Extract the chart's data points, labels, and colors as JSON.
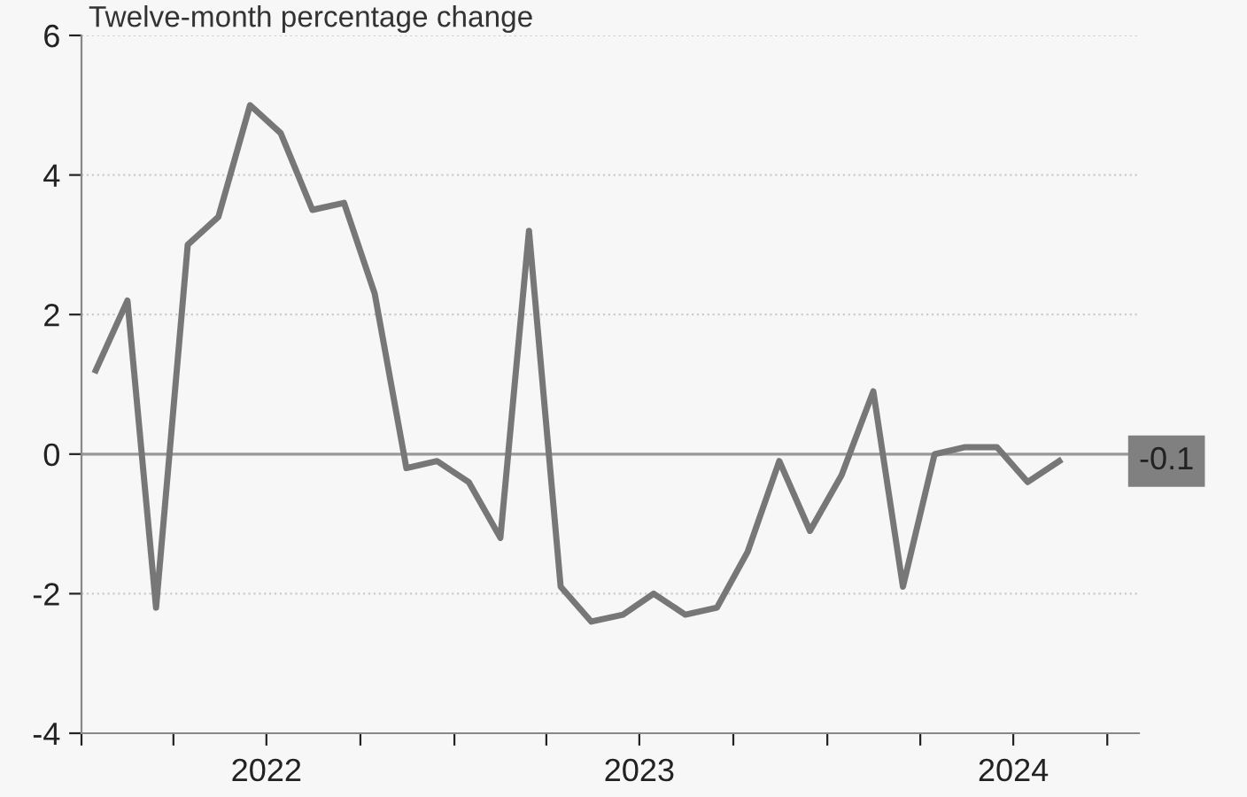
{
  "chart_data": {
    "type": "line",
    "title": "Twelve-month percentage change",
    "x": [
      "2022-01-15",
      "2022-02-15",
      "2022-03-15",
      "2022-04-15",
      "2022-05-15",
      "2022-06-15",
      "2022-07-15",
      "2022-08-15",
      "2022-09-15",
      "2022-10-15",
      "2022-11-15",
      "2022-12-15",
      "2023-01-15",
      "2023-02-15",
      "2023-03-15",
      "2023-04-15",
      "2023-05-15",
      "2023-06-15",
      "2023-07-15",
      "2023-08-15",
      "2023-09-15",
      "2023-10-15",
      "2023-11-15",
      "2023-12-15",
      "2024-01-15",
      "2024-02-15",
      "2024-03-15",
      "2024-04-15",
      "2024-05-15",
      "2024-06-15",
      "2024-07-15",
      "2024-08-15"
    ],
    "series": [
      {
        "color": "#777777",
        "values": [
          1.2,
          2.2,
          -2.2,
          3.0,
          3.4,
          5.0,
          4.6,
          3.5,
          3.6,
          2.3,
          -0.2,
          -0.1,
          -0.4,
          -1.2,
          3.2,
          -1.9,
          -2.4,
          -2.3,
          -2.0,
          -2.3,
          -2.2,
          -1.4,
          -0.1,
          -1.1,
          -0.3,
          0.9,
          -1.9,
          0.0,
          0.1,
          0.1,
          -0.4,
          -0.1
        ]
      }
    ],
    "xlim": [
      "2022-01-01",
      "2024-11-01"
    ],
    "xticks": [
      {
        "value": "2022-01-01",
        "label": null
      },
      {
        "value": "2022-04-01",
        "label": null
      },
      {
        "value": "2022-07-01",
        "label": "2022"
      },
      {
        "value": "2022-10-01",
        "label": null
      },
      {
        "value": "2023-01-01",
        "label": null
      },
      {
        "value": "2023-04-01",
        "label": null
      },
      {
        "value": "2023-07-01",
        "label": "2023"
      },
      {
        "value": "2023-10-01",
        "label": null
      },
      {
        "value": "2024-01-01",
        "label": null
      },
      {
        "value": "2024-04-01",
        "label": null
      },
      {
        "value": "2024-07-01",
        "label": "2024"
      },
      {
        "value": "2024-10-01",
        "label": null
      }
    ],
    "ylim": [
      -4,
      6
    ],
    "yticks": [
      -4,
      -2,
      0,
      2,
      4,
      6
    ],
    "grid": "y",
    "line_style": "solid",
    "marker": "none",
    "legend": false,
    "ref_lines": [
      {
        "axis": "y",
        "value": 0,
        "color": "#999999",
        "line_style": "solid"
      }
    ],
    "annotations": [
      {
        "text": "-0.1",
        "x": "2024-08-15",
        "y": -0.1
      }
    ]
  }
}
